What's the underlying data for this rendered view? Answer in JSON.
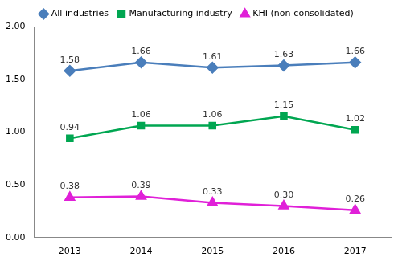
{
  "chart_data": {
    "type": "line",
    "categories": [
      "2013",
      "2014",
      "2015",
      "2016",
      "2017"
    ],
    "series": [
      {
        "name": "All industries",
        "color": "#4a7ebb",
        "marker": "diamond",
        "values": [
          1.58,
          1.66,
          1.61,
          1.63,
          1.66
        ]
      },
      {
        "name": "Manufacturing industry",
        "color": "#00a651",
        "marker": "square",
        "values": [
          0.94,
          1.06,
          1.06,
          1.15,
          1.02
        ]
      },
      {
        "name": "KHI (non-consolidated)",
        "color": "#e020d8",
        "marker": "triangle",
        "values": [
          0.38,
          0.39,
          0.33,
          0.3,
          0.26
        ],
        "value_labels": [
          "0.38",
          "0.39",
          "0.33",
          "0.30",
          "0.26"
        ]
      }
    ],
    "ylim": [
      0,
      2
    ],
    "yticks": [
      {
        "value": 0,
        "label": "0.00"
      },
      {
        "value": 0.5,
        "label": "0.50"
      },
      {
        "value": 1,
        "label": "1.00"
      },
      {
        "value": 1.5,
        "label": "1.50"
      },
      {
        "value": 2,
        "label": "2.00"
      }
    ],
    "grid": false,
    "legend": "top",
    "data_labels": true
  }
}
